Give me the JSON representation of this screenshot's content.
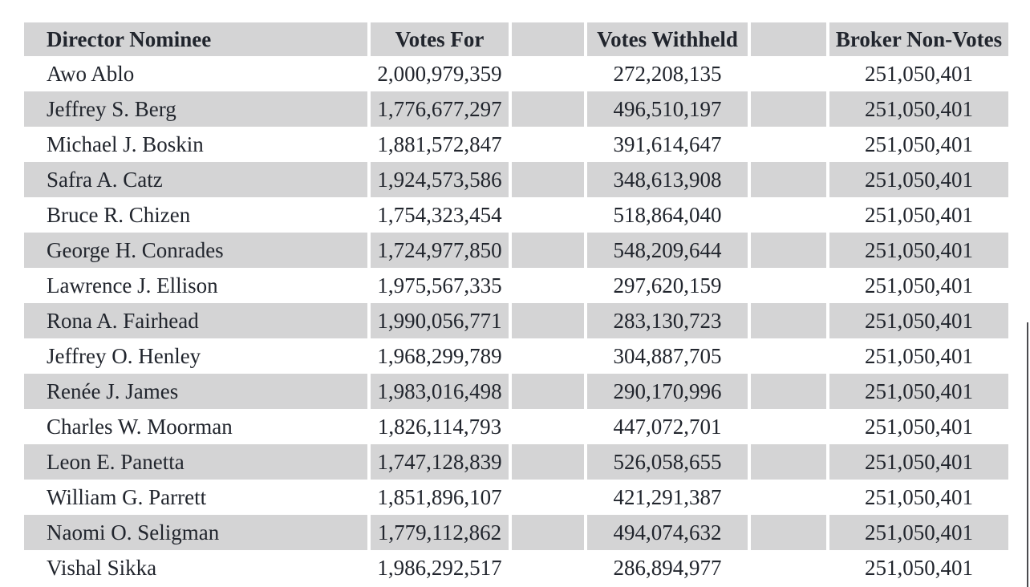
{
  "table": {
    "columns": [
      "Director Nominee",
      "Votes For",
      "Votes Withheld",
      "Broker Non-Votes"
    ],
    "rows": [
      {
        "name": "Awo Ablo",
        "votes_for": "2,000,979,359",
        "votes_withheld": "272,208,135",
        "broker_non_votes": "251,050,401"
      },
      {
        "name": "Jeffrey S. Berg",
        "votes_for": "1,776,677,297",
        "votes_withheld": "496,510,197",
        "broker_non_votes": "251,050,401"
      },
      {
        "name": "Michael J. Boskin",
        "votes_for": "1,881,572,847",
        "votes_withheld": "391,614,647",
        "broker_non_votes": "251,050,401"
      },
      {
        "name": "Safra A. Catz",
        "votes_for": "1,924,573,586",
        "votes_withheld": "348,613,908",
        "broker_non_votes": "251,050,401"
      },
      {
        "name": "Bruce R. Chizen",
        "votes_for": "1,754,323,454",
        "votes_withheld": "518,864,040",
        "broker_non_votes": "251,050,401"
      },
      {
        "name": "George H. Conrades",
        "votes_for": "1,724,977,850",
        "votes_withheld": "548,209,644",
        "broker_non_votes": "251,050,401"
      },
      {
        "name": "Lawrence J. Ellison",
        "votes_for": "1,975,567,335",
        "votes_withheld": "297,620,159",
        "broker_non_votes": "251,050,401"
      },
      {
        "name": "Rona A. Fairhead",
        "votes_for": "1,990,056,771",
        "votes_withheld": "283,130,723",
        "broker_non_votes": "251,050,401"
      },
      {
        "name": "Jeffrey O. Henley",
        "votes_for": "1,968,299,789",
        "votes_withheld": "304,887,705",
        "broker_non_votes": "251,050,401"
      },
      {
        "name": "Renée J. James",
        "votes_for": "1,983,016,498",
        "votes_withheld": "290,170,996",
        "broker_non_votes": "251,050,401"
      },
      {
        "name": "Charles W. Moorman",
        "votes_for": "1,826,114,793",
        "votes_withheld": "447,072,701",
        "broker_non_votes": "251,050,401"
      },
      {
        "name": "Leon E. Panetta",
        "votes_for": "1,747,128,839",
        "votes_withheld": "526,058,655",
        "broker_non_votes": "251,050,401"
      },
      {
        "name": "William G. Parrett",
        "votes_for": "1,851,896,107",
        "votes_withheld": "421,291,387",
        "broker_non_votes": "251,050,401"
      },
      {
        "name": "Naomi O. Seligman",
        "votes_for": "1,779,112,862",
        "votes_withheld": "494,074,632",
        "broker_non_votes": "251,050,401"
      },
      {
        "name": "Vishal Sikka",
        "votes_for": "1,986,292,517",
        "votes_withheld": "286,894,977",
        "broker_non_votes": "251,050,401"
      }
    ]
  },
  "colors": {
    "stripe": "#d4d4d5",
    "text": "#21252d",
    "edge_line": "#4a4a4e"
  }
}
